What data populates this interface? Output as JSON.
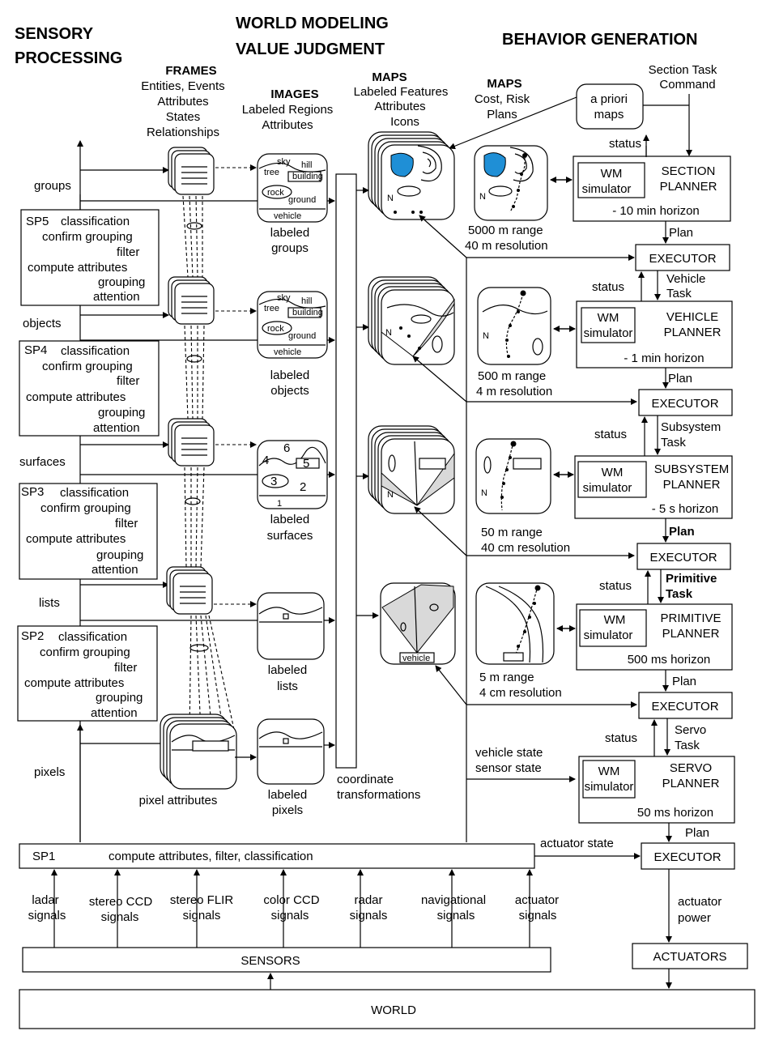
{
  "headers": {
    "sensory_1": "SENSORY",
    "sensory_2": "PROCESSING",
    "wm_1": "WORLD MODELING",
    "wm_2": "VALUE JUDGMENT",
    "bg": "BEHAVIOR GENERATION"
  },
  "columns": {
    "frames_title": "FRAMES",
    "frames_lines": [
      "Entities, Events",
      "Attributes",
      "States",
      "Relationships"
    ],
    "images_title": "IMAGES",
    "images_lines": [
      "Labeled Regions",
      "Attributes"
    ],
    "maps1_title": "MAPS",
    "maps1_lines": [
      "Labeled Features",
      "Attributes",
      "Icons"
    ],
    "maps2_title": "MAPS",
    "maps2_lines": [
      "Cost, Risk",
      "Plans"
    ]
  },
  "section_task": [
    "Section Task",
    "Command"
  ],
  "a_priori": [
    "a priori",
    "maps"
  ],
  "sp_levels": [
    {
      "name": "SP5",
      "output": "groups",
      "lines": [
        "classification",
        "confirm grouping",
        "filter",
        "compute attributes",
        "grouping",
        "attention"
      ]
    },
    {
      "name": "SP4",
      "output": "objects",
      "lines": [
        "classification",
        "confirm grouping",
        "filter",
        "compute attributes",
        "grouping",
        "attention"
      ]
    },
    {
      "name": "SP3",
      "output": "surfaces",
      "lines": [
        "classification",
        "confirm grouping",
        "filter",
        "compute attributes",
        "grouping",
        "attention"
      ]
    },
    {
      "name": "SP2",
      "output": "lists",
      "lines": [
        "classification",
        "confirm grouping",
        "filter",
        "compute attributes",
        "grouping",
        "attention"
      ]
    }
  ],
  "pixels_label": "pixels",
  "sp1": {
    "name": "SP1",
    "text": "compute attributes, filter, classification"
  },
  "image_labels": [
    [
      "labeled",
      "groups"
    ],
    [
      "labeled",
      "objects"
    ],
    [
      "labeled",
      "surfaces"
    ],
    [
      "labeled",
      "lists"
    ],
    [
      "labeled",
      "pixels"
    ]
  ],
  "image_words": {
    "sky": "sky",
    "tree": "tree",
    "hill": "hill",
    "building": "building",
    "rock": "rock",
    "ground": "ground",
    "vehicle": "vehicle",
    "n1": "1",
    "n2": "2",
    "n3": "3",
    "n4": "4",
    "n5": "5",
    "n6": "6"
  },
  "pixel_attributes": "pixel attributes",
  "coord_transform": [
    "coordinate",
    "transformations"
  ],
  "map_captions": [
    [
      "5000 m range",
      "40 m resolution"
    ],
    [
      "500 m range",
      "4 m resolution"
    ],
    [
      "50 m range",
      "40 cm resolution"
    ],
    [
      "5 m range",
      "4 cm resolution"
    ]
  ],
  "map_north": "N",
  "map_vehicle": "vehicle",
  "planners": [
    {
      "sim": [
        "WM",
        "simulator"
      ],
      "name": [
        "SECTION",
        "PLANNER"
      ],
      "horizon": "- 10 min horizon"
    },
    {
      "sim": [
        "WM",
        "simulator"
      ],
      "name": [
        "VEHICLE",
        "PLANNER"
      ],
      "horizon": "- 1 min horizon"
    },
    {
      "sim": [
        "WM",
        "simulator"
      ],
      "name": [
        "SUBSYSTEM",
        "PLANNER"
      ],
      "horizon": "- 5 s horizon"
    },
    {
      "sim": [
        "WM",
        "simulator"
      ],
      "name": [
        "PRIMITIVE",
        "PLANNER"
      ],
      "horizon": "500 ms horizon"
    },
    {
      "sim": [
        "WM",
        "simulator"
      ],
      "name": [
        "SERVO",
        "PLANNER"
      ],
      "horizon": "50 ms horizon"
    }
  ],
  "executor": "EXECUTOR",
  "plan": "Plan",
  "status": "status",
  "tasks": [
    [
      "Vehicle",
      "Task"
    ],
    [
      "Subsystem",
      "Task"
    ],
    [
      "Primitive",
      "Task"
    ],
    [
      "Servo",
      "Task"
    ]
  ],
  "vehicle_state": [
    "vehicle state",
    "sensor state"
  ],
  "actuator_state": "actuator state",
  "actuator_power": [
    "actuator",
    "power"
  ],
  "actuators": "ACTUATORS",
  "signals": [
    [
      "ladar",
      "signals"
    ],
    [
      "stereo CCD",
      "signals"
    ],
    [
      "stereo FLIR",
      "signals"
    ],
    [
      "color CCD",
      "signals"
    ],
    [
      "radar",
      "signals"
    ],
    [
      "navigational",
      "signals"
    ],
    [
      "actuator",
      "signals"
    ]
  ],
  "sensors": "SENSORS",
  "world": "WORLD"
}
